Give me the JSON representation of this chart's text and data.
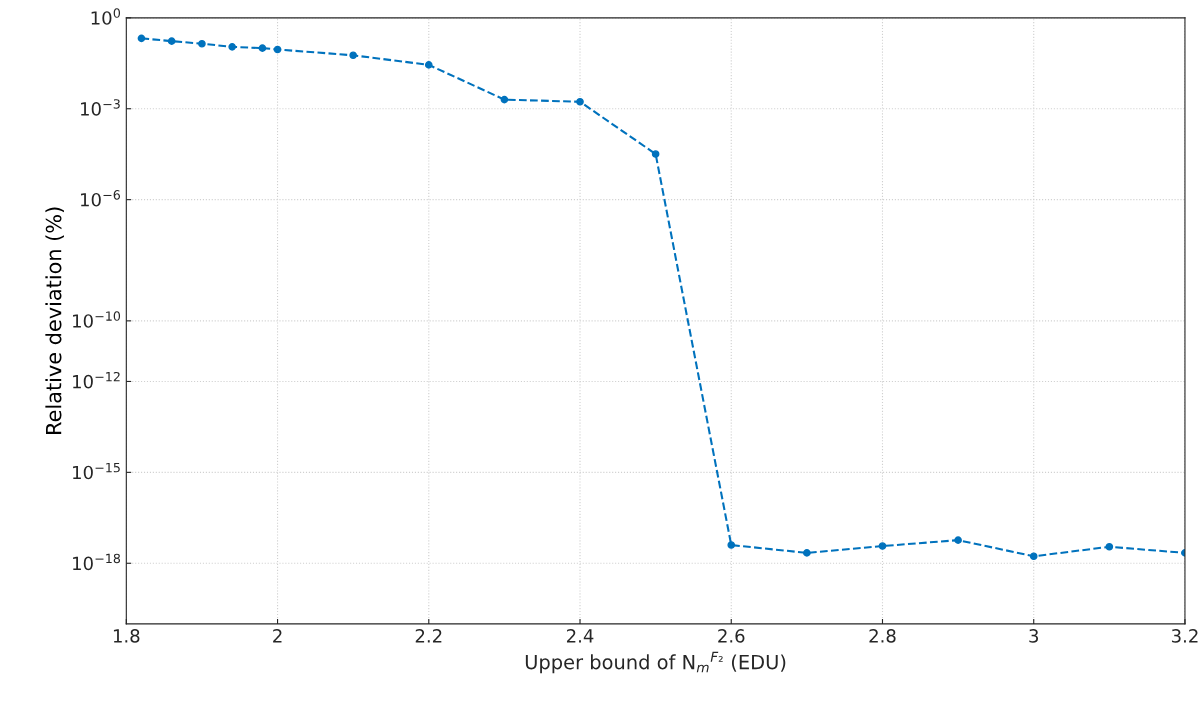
{
  "chart_data": {
    "type": "line",
    "xlabel": "Upper bound of N$_{m}$$^{F₂}$ (EDU)",
    "ylabel": "Relative deviation (%)",
    "x": [
      1.82,
      1.86,
      1.9,
      1.94,
      1.98,
      2.0,
      2.1,
      2.2,
      2.3,
      2.4,
      2.5,
      2.6,
      2.7,
      2.8,
      2.9,
      3.0,
      3.1,
      3.2
    ],
    "series": [
      {
        "color": "#0072bd",
        "values": [
          0.21,
          0.17,
          0.14,
          0.11,
          0.1,
          0.09,
          0.058,
          0.028,
          0.002,
          0.0017,
          3.2e-05,
          4e-18,
          2.2e-18,
          3.7e-18,
          5.8e-18,
          1.7e-18,
          3.5e-18,
          2.2e-18
        ]
      }
    ],
    "log": "y",
    "xlim": [
      1.8,
      3.2
    ],
    "ylim": [
      1e-20,
      1
    ],
    "xticks": [
      {
        "value": 1.8,
        "label": "1.8"
      },
      2,
      {
        "value": 2.2,
        "label": "2.2"
      },
      {
        "value": 2.4,
        "label": "2.4"
      },
      {
        "value": 2.6,
        "label": "2.6"
      },
      {
        "value": 2.8,
        "label": "2.8"
      },
      3,
      {
        "value": 3.2,
        "label": "3.2"
      }
    ],
    "yticks": [
      {
        "value": 1e-18,
        "label": "10$^{−18}$"
      },
      {
        "value": 1e-15,
        "label": "10$^{−15}$"
      },
      {
        "value": 1e-12,
        "label": "10$^{−12}$"
      },
      {
        "value": 1e-10,
        "label": "10$^{−10}$"
      },
      {
        "value": 1e-06,
        "label": "10$^{−6}$"
      },
      {
        "value": 0.001,
        "label": "10$^{−3}$"
      },
      {
        "value": 1,
        "label": "10$^{0}$"
      }
    ],
    "grid": true,
    "marker": "circle",
    "line_style": "dashed",
    "legend": false
  }
}
